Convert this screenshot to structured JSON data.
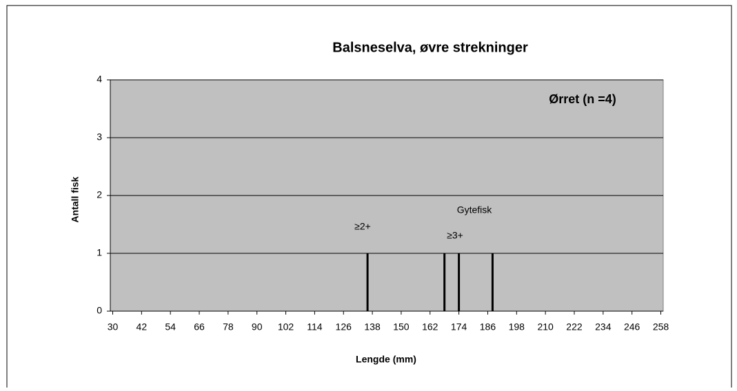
{
  "chart_data": {
    "type": "bar",
    "title": "Balsneselva, øvre strekninger",
    "xlabel": "Lengde (mm)",
    "ylabel": "Antall fisk",
    "x": [
      136,
      168,
      174,
      188
    ],
    "values": [
      1,
      1,
      1,
      1
    ],
    "color": "#000000",
    "xlim": [
      29,
      259
    ],
    "xticks": [
      30,
      42,
      54,
      66,
      78,
      90,
      102,
      114,
      126,
      138,
      150,
      162,
      174,
      186,
      198,
      210,
      222,
      234,
      246,
      258
    ],
    "ylim": [
      0,
      4
    ],
    "yticks": [
      0,
      1,
      2,
      3,
      4
    ],
    "grid": true,
    "annotations": [
      "Ørret (n =4)",
      "Gytefisk",
      "≥2+",
      "≥3+"
    ]
  }
}
